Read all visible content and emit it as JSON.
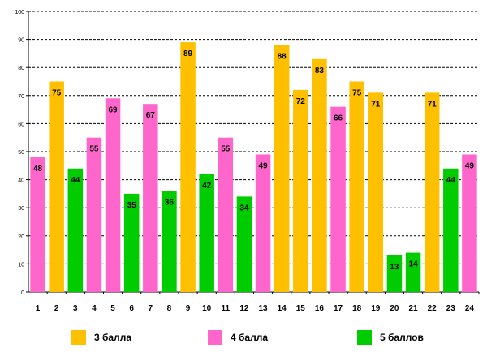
{
  "chart_data": {
    "type": "bar",
    "title": "",
    "xlabel": "",
    "ylabel": "",
    "ylim": [
      0,
      100
    ],
    "yticks": [
      0,
      10,
      20,
      30,
      40,
      50,
      60,
      70,
      80,
      90,
      100
    ],
    "grid": true,
    "categories": [
      "1",
      "2",
      "3",
      "4",
      "5",
      "6",
      "7",
      "8",
      "9",
      "10",
      "11",
      "12",
      "13",
      "14",
      "15",
      "16",
      "17",
      "18",
      "19",
      "20",
      "21",
      "22",
      "23",
      "24"
    ],
    "values": [
      48,
      75,
      44,
      55,
      69,
      35,
      67,
      36,
      89,
      42,
      55,
      34,
      49,
      88,
      72,
      83,
      66,
      75,
      71,
      13,
      14,
      71,
      44,
      49
    ],
    "groups": [
      "4 балла",
      "3 балла",
      "5 баллов",
      "4 балла",
      "4 балла",
      "5 баллов",
      "4 балла",
      "5 баллов",
      "3 балла",
      "5 баллов",
      "4 балла",
      "5 баллов",
      "4 балла",
      "3 балла",
      "3 балла",
      "3 балла",
      "4 балла",
      "3 балла",
      "3 балла",
      "5 баллов",
      "5 баллов",
      "3 балла",
      "5 баллов",
      "4 балла"
    ],
    "legend": {
      "placement": "bottom",
      "entries": [
        {
          "label": "3 балла",
          "color": "#FFC000"
        },
        {
          "label": "4 балла",
          "color": "#FF66CC"
        },
        {
          "label": "5 баллов",
          "color": "#00CC00"
        }
      ]
    }
  }
}
